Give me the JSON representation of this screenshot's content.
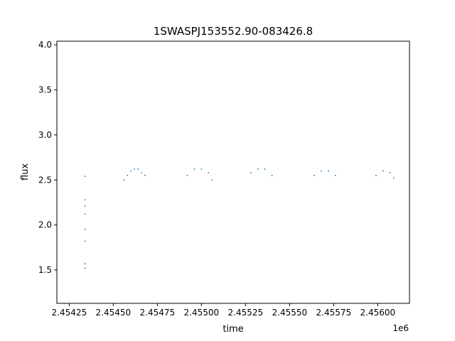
{
  "chart_data": {
    "type": "scatter",
    "title": "1SWASPJ153552.90-083426.8",
    "xlabel": "time",
    "ylabel": "flux",
    "x_offset_label": "1e6",
    "xlim": [
      2.45418,
      2.45618
    ],
    "ylim": [
      1.13,
      4.04
    ],
    "x_ticks": [
      2.45425,
      2.4545,
      2.45475,
      2.455,
      2.45525,
      2.4555,
      2.45575,
      2.456
    ],
    "x_tick_labels": [
      "2.45425",
      "2.45450",
      "2.45475",
      "2.45500",
      "2.45525",
      "2.45550",
      "2.45575",
      "2.45600"
    ],
    "y_ticks": [
      1.5,
      2.0,
      2.5,
      3.0,
      3.5,
      4.0
    ],
    "y_tick_labels": [
      "1.5",
      "2.0",
      "2.5",
      "3.0",
      "3.5",
      "4.0"
    ],
    "grid": false,
    "marker_color": "#1f77b4",
    "series": [
      {
        "points": [
          [
            2.45434,
            2.54
          ],
          [
            2.45434,
            2.28
          ],
          [
            2.45434,
            2.21
          ],
          [
            2.45434,
            2.12
          ],
          [
            2.45434,
            1.95
          ],
          [
            2.45434,
            1.82
          ],
          [
            2.45434,
            1.57
          ],
          [
            2.45434,
            1.52
          ],
          [
            2.45456,
            2.5
          ],
          [
            2.45458,
            2.55
          ],
          [
            2.4546,
            2.6
          ],
          [
            2.45462,
            2.62
          ],
          [
            2.45464,
            2.62
          ],
          [
            2.45466,
            2.58
          ],
          [
            2.45468,
            2.55
          ],
          [
            2.45492,
            2.55
          ],
          [
            2.45496,
            2.62
          ],
          [
            2.455,
            2.62
          ],
          [
            2.45504,
            2.58
          ],
          [
            2.45506,
            2.5
          ],
          [
            2.45528,
            2.58
          ],
          [
            2.45532,
            2.62
          ],
          [
            2.45536,
            2.62
          ],
          [
            2.4554,
            2.55
          ],
          [
            2.45564,
            2.55
          ],
          [
            2.45568,
            2.6
          ],
          [
            2.45572,
            2.6
          ],
          [
            2.45576,
            2.55
          ],
          [
            2.45599,
            2.55
          ],
          [
            2.45603,
            2.6
          ],
          [
            2.45607,
            2.58
          ],
          [
            2.45609,
            2.52
          ]
        ]
      }
    ]
  }
}
